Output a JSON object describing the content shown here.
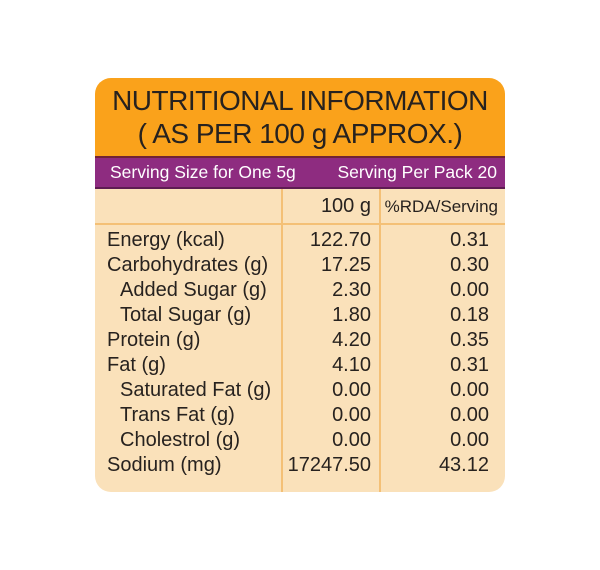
{
  "header": {
    "line1": "NUTRITIONAL INFORMATION",
    "line2": "( AS PER 100 g APPROX.)"
  },
  "serving": {
    "size": "Serving Size for One 5g",
    "per_pack": "Serving Per Pack 20"
  },
  "table": {
    "col_100g": "100 g",
    "col_rda": "%RDA/Serving",
    "rows": [
      {
        "label": "Energy (kcal)",
        "indent": false,
        "per_100g": "122.70",
        "rda_per_serving": "0.31"
      },
      {
        "label": "Carbohydrates (g)",
        "indent": false,
        "per_100g": "17.25",
        "rda_per_serving": "0.30"
      },
      {
        "label": "Added Sugar (g)",
        "indent": true,
        "per_100g": "2.30",
        "rda_per_serving": "0.00"
      },
      {
        "label": "Total Sugar (g)",
        "indent": true,
        "per_100g": "1.80",
        "rda_per_serving": "0.18"
      },
      {
        "label": "Protein (g)",
        "indent": false,
        "per_100g": "4.20",
        "rda_per_serving": "0.35"
      },
      {
        "label": "Fat (g)",
        "indent": false,
        "per_100g": "4.10",
        "rda_per_serving": "0.31"
      },
      {
        "label": "Saturated Fat (g)",
        "indent": true,
        "per_100g": "0.00",
        "rda_per_serving": "0.00"
      },
      {
        "label": "Trans Fat (g)",
        "indent": true,
        "per_100g": "0.00",
        "rda_per_serving": "0.00"
      },
      {
        "label": "Cholestrol (g)",
        "indent": true,
        "per_100g": "0.00",
        "rda_per_serving": "0.00"
      },
      {
        "label": "Sodium (mg)",
        "indent": false,
        "per_100g": "17247.50",
        "rda_per_serving": "43.12"
      }
    ]
  },
  "colors": {
    "header_bg": "#FAA21B",
    "serving_bg": "#8E2C80",
    "table_bg": "#FAE1BA",
    "divider": "#F4C076",
    "text": "#27221F",
    "serving_text": "#FFFFFF"
  }
}
